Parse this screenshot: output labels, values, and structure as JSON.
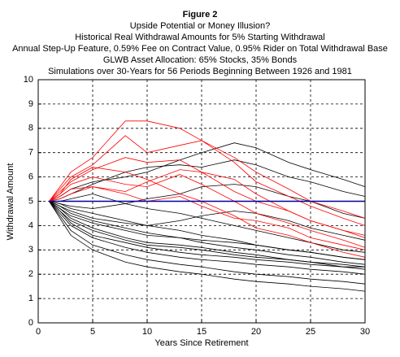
{
  "chart_data": {
    "type": "line",
    "title": "Figure 2",
    "subtitle": [
      "Upside Potential or Money Illusion?",
      "Historical Real Withdrawal Amounts for 5% Starting Withdrawal",
      "Annual Step-Up Feature, 0.59% Fee on Contract Value, 0.95% Rider on Total Withdrawal Base",
      "GLWB Asset Allocation: 65% Stocks, 35% Bonds",
      "Simulations over 30-Years for 56 Periods Beginning Between 1926 and 1981"
    ],
    "x_label": "Years Since Retirement",
    "y_label": "Withdrawal Amount",
    "x": [
      1,
      2,
      3,
      5,
      8,
      10,
      13,
      15,
      18,
      20,
      23,
      25,
      28,
      30
    ],
    "xlim": [
      0,
      30
    ],
    "xticks": [
      0,
      5,
      10,
      15,
      20,
      25,
      30
    ],
    "ylim": [
      0,
      10
    ],
    "yticks": [
      0,
      1,
      2,
      3,
      4,
      5,
      6,
      7,
      8,
      9,
      10
    ],
    "grid": true,
    "series": [
      {
        "color": "#000000",
        "values": [
          5,
          5.2,
          5.5,
          5.8,
          6.0,
          6.2,
          6.7,
          7.0,
          7.4,
          7.2,
          6.6,
          6.3,
          5.9,
          5.6
        ]
      },
      {
        "color": "#000000",
        "values": [
          5,
          5.1,
          5.3,
          5.7,
          6.2,
          6.4,
          6.5,
          6.4,
          6.7,
          6.5,
          6.0,
          5.8,
          5.4,
          5.2
        ]
      },
      {
        "color": "#000000",
        "values": [
          5,
          4.9,
          4.8,
          4.7,
          4.9,
          5.1,
          5.3,
          5.6,
          5.7,
          5.6,
          5.2,
          5.0,
          4.5,
          4.3
        ]
      },
      {
        "color": "#000000",
        "values": [
          5,
          4.8,
          4.6,
          4.3,
          4.1,
          4.0,
          4.2,
          4.4,
          4.6,
          4.5,
          4.2,
          3.9,
          3.6,
          3.4
        ]
      },
      {
        "color": "#000000",
        "values": [
          5,
          4.7,
          4.4,
          4.1,
          3.8,
          3.6,
          3.5,
          3.4,
          3.3,
          3.2,
          3.0,
          2.9,
          2.7,
          2.6
        ]
      },
      {
        "color": "#000000",
        "values": [
          5,
          4.6,
          4.2,
          3.8,
          3.4,
          3.2,
          3.1,
          3.0,
          2.8,
          2.7,
          2.6,
          2.5,
          2.3,
          2.2
        ]
      },
      {
        "color": "#000000",
        "values": [
          5,
          4.5,
          4.0,
          3.5,
          3.1,
          2.9,
          2.7,
          2.6,
          2.5,
          2.4,
          2.3,
          2.2,
          2.1,
          2.0
        ]
      },
      {
        "color": "#000000",
        "values": [
          5,
          4.4,
          3.8,
          3.2,
          2.8,
          2.6,
          2.4,
          2.3,
          2.1,
          2.0,
          1.9,
          1.8,
          1.7,
          1.6
        ]
      },
      {
        "color": "#000000",
        "values": [
          5,
          4.3,
          3.6,
          3.0,
          2.5,
          2.3,
          2.1,
          2.0,
          1.8,
          1.7,
          1.6,
          1.5,
          1.4,
          1.3
        ]
      },
      {
        "color": "#000000",
        "values": [
          5,
          4.6,
          4.1,
          3.6,
          3.3,
          3.1,
          2.9,
          2.8,
          2.7,
          2.6,
          2.5,
          2.4,
          2.3,
          2.3
        ]
      },
      {
        "color": "#000000",
        "values": [
          5,
          5.0,
          5.1,
          5.3,
          4.9,
          4.7,
          4.5,
          4.3,
          4.0,
          3.8,
          3.5,
          3.3,
          3.0,
          2.9
        ]
      },
      {
        "color": "#000000",
        "values": [
          5,
          4.8,
          4.5,
          4.2,
          3.9,
          3.7,
          3.5,
          3.3,
          3.1,
          3.0,
          2.8,
          2.7,
          2.5,
          2.4
        ]
      },
      {
        "color": "#000000",
        "values": [
          5,
          4.7,
          4.3,
          3.9,
          3.5,
          3.3,
          3.2,
          3.1,
          2.9,
          2.8,
          2.6,
          2.5,
          2.4,
          2.3
        ]
      },
      {
        "color": "#000000",
        "values": [
          5,
          4.9,
          4.7,
          4.5,
          4.2,
          4.0,
          3.8,
          3.6,
          3.4,
          3.2,
          3.0,
          2.9,
          2.7,
          2.6
        ]
      },
      {
        "color": "#ff0000",
        "values": [
          5,
          5.6,
          6.2,
          6.8,
          8.3,
          8.3,
          8.0,
          7.5,
          6.8,
          6.2,
          5.5,
          5.0,
          4.6,
          4.3
        ]
      },
      {
        "color": "#ff0000",
        "values": [
          5,
          5.5,
          6.0,
          6.5,
          7.7,
          7.0,
          7.3,
          7.5,
          6.6,
          5.8,
          5.2,
          4.8,
          4.3,
          4.0
        ]
      },
      {
        "color": "#ff0000",
        "values": [
          5,
          5.4,
          5.8,
          6.3,
          6.8,
          6.6,
          6.7,
          6.2,
          5.4,
          5.0,
          4.6,
          4.2,
          3.8,
          3.6
        ]
      },
      {
        "color": "#ff0000",
        "values": [
          5,
          5.3,
          5.7,
          6.0,
          5.7,
          5.6,
          6.1,
          5.7,
          5.0,
          4.5,
          4.1,
          3.8,
          3.4,
          3.1
        ]
      },
      {
        "color": "#ff0000",
        "values": [
          5,
          5.2,
          5.5,
          5.6,
          5.3,
          5.0,
          5.2,
          4.8,
          4.3,
          4.2,
          3.9,
          3.5,
          3.2,
          3.0
        ]
      },
      {
        "color": "#ff0000",
        "values": [
          5,
          5.3,
          5.9,
          6.4,
          6.2,
          5.9,
          5.3,
          5.0,
          4.4,
          3.9,
          3.6,
          3.3,
          2.9,
          2.7
        ]
      },
      {
        "color": "#ff0000",
        "values": [
          5,
          5.1,
          5.3,
          5.6,
          5.4,
          5.8,
          6.3,
          6.2,
          5.9,
          5.3,
          4.6,
          4.2,
          3.8,
          3.5
        ]
      },
      {
        "color": "#0000a0",
        "values": [
          5,
          5,
          5,
          5,
          5,
          5,
          5,
          5,
          5,
          5,
          5,
          5,
          5,
          5
        ]
      }
    ]
  }
}
